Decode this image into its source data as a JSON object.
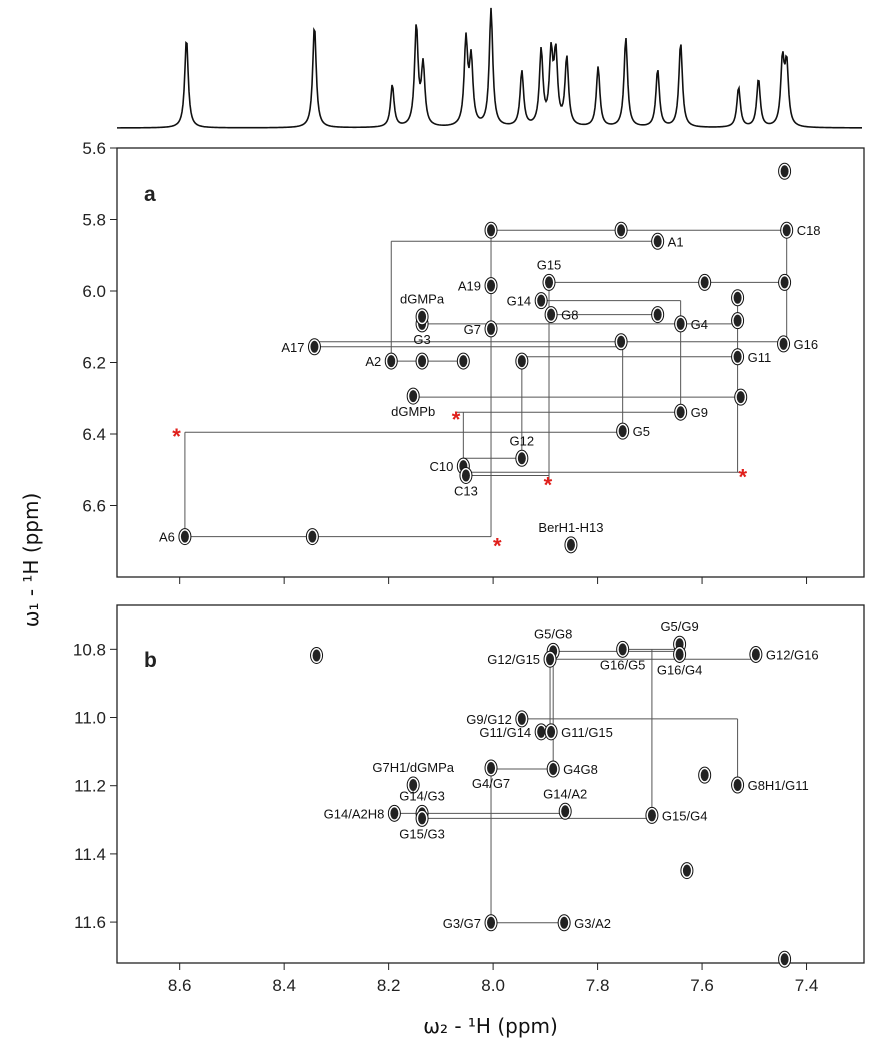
{
  "ylabel": "ω₁ - ¹H  (ppm)",
  "chart_data": [
    {
      "type": "spectrum",
      "xlim": [
        8.72,
        7.29
      ],
      "linewidth": 0.004,
      "x": [
        8.587,
        8.342,
        8.193,
        8.147,
        8.134,
        8.052,
        8.042,
        8.004,
        7.945,
        7.908,
        7.889,
        7.88,
        7.859,
        7.799,
        7.746,
        7.685,
        7.641,
        7.53,
        7.492,
        7.446,
        7.438
      ],
      "values": [
        76,
        87,
        36,
        85,
        51,
        72,
        55,
        100,
        47,
        64,
        59,
        59,
        58,
        51,
        76,
        49,
        72,
        34,
        41,
        55,
        51
      ]
    },
    {
      "type": "contour",
      "panel_label": "a",
      "xlim": [
        8.72,
        7.29
      ],
      "ylim": [
        5.6,
        6.8
      ],
      "yticks": [
        5.6,
        5.8,
        {
          "value": 6,
          "label": "6.0"
        },
        6.2,
        6.4,
        6.6
      ],
      "peaks": [
        {
          "label": "A1",
          "x": 7.685,
          "y": 5.861,
          "label_side": "right"
        },
        {
          "label": "C18",
          "x": 7.438,
          "y": 5.83,
          "label_side": "right"
        },
        {
          "x": 7.442,
          "y": 5.665
        },
        {
          "label": "A19",
          "x": 8.004,
          "y": 5.985,
          "label_side": "left"
        },
        {
          "label": "G15",
          "x": 7.893,
          "y": 5.976,
          "label_side": "above"
        },
        {
          "label": "G14",
          "x": 7.908,
          "y": 6.027,
          "label_side": "left"
        },
        {
          "label": "G8",
          "x": 7.889,
          "y": 6.066,
          "label_side": "right"
        },
        {
          "label": "G16",
          "x": 7.444,
          "y": 6.148,
          "label_side": "right"
        },
        {
          "label": "G3",
          "x": 8.136,
          "y": 6.092,
          "label_side": "below"
        },
        {
          "label": "dGMPa",
          "x": 8.136,
          "y": 6.072,
          "label_side": "above"
        },
        {
          "label": "G7",
          "x": 8.004,
          "y": 6.106,
          "label_side": "left"
        },
        {
          "label": "G4",
          "x": 7.641,
          "y": 6.092,
          "label_side": "right"
        },
        {
          "label": "G11",
          "x": 7.532,
          "y": 6.184,
          "label_side": "right"
        },
        {
          "label": "A17",
          "x": 8.342,
          "y": 6.156,
          "label_side": "left"
        },
        {
          "label": "A2",
          "x": 8.195,
          "y": 6.196,
          "label_side": "left"
        },
        {
          "label": "G9",
          "x": 7.641,
          "y": 6.339,
          "label_side": "right"
        },
        {
          "label": "dGMPb",
          "x": 8.153,
          "y": 6.294,
          "label_side": "below"
        },
        {
          "label": "G5",
          "x": 7.752,
          "y": 6.392,
          "label_side": "right"
        },
        {
          "label": "G12",
          "x": 7.945,
          "y": 6.468,
          "label_side": "above"
        },
        {
          "label": "C10",
          "x": 8.057,
          "y": 6.49,
          "label_side": "left"
        },
        {
          "label": "C13",
          "x": 8.052,
          "y": 6.516,
          "label_side": "below"
        },
        {
          "label": "A6",
          "x": 8.59,
          "y": 6.687,
          "label_side": "left"
        },
        {
          "label": "BerH1-H13",
          "x": 7.851,
          "y": 6.71,
          "label_side": "above"
        },
        {
          "x": 7.532,
          "y": 6.019
        },
        {
          "x": 7.755,
          "y": 6.142
        },
        {
          "x": 7.526,
          "y": 6.297
        },
        {
          "x": 7.945,
          "y": 6.196
        },
        {
          "x": 8.004,
          "y": 5.83
        },
        {
          "x": 7.755,
          "y": 5.83
        },
        {
          "x": 7.532,
          "y": 6.083
        },
        {
          "x": 8.136,
          "y": 6.196
        },
        {
          "x": 8.057,
          "y": 6.196
        },
        {
          "x": 8.346,
          "y": 6.687
        },
        {
          "x": 7.595,
          "y": 5.976
        },
        {
          "x": 7.685,
          "y": 6.066
        },
        {
          "x": 7.442,
          "y": 5.976
        }
      ],
      "lines": [
        [
          [
            8.004,
            5.83
          ],
          [
            7.438,
            5.83
          ]
        ],
        [
          [
            8.195,
            5.861
          ],
          [
            7.685,
            5.861
          ]
        ],
        [
          [
            8.195,
            5.861
          ],
          [
            8.195,
            6.196
          ]
        ],
        [
          [
            8.004,
            5.83
          ],
          [
            8.004,
            6.687
          ]
        ],
        [
          [
            7.438,
            5.83
          ],
          [
            7.438,
            6.148
          ]
        ],
        [
          [
            7.893,
            5.976
          ],
          [
            7.442,
            5.976
          ]
        ],
        [
          [
            7.532,
            6.019
          ],
          [
            7.532,
            6.507
          ]
        ],
        [
          [
            7.908,
            6.027
          ],
          [
            7.641,
            6.027
          ]
        ],
        [
          [
            7.889,
            6.066
          ],
          [
            7.685,
            6.066
          ]
        ],
        [
          [
            8.136,
            6.092
          ],
          [
            7.532,
            6.092
          ]
        ],
        [
          [
            8.342,
            6.142
          ],
          [
            7.444,
            6.142
          ]
        ],
        [
          [
            8.342,
            6.156
          ],
          [
            7.755,
            6.156
          ]
        ],
        [
          [
            7.945,
            6.184
          ],
          [
            7.532,
            6.184
          ]
        ],
        [
          [
            8.195,
            6.196
          ],
          [
            8.057,
            6.196
          ]
        ],
        [
          [
            8.153,
            6.297
          ],
          [
            7.526,
            6.297
          ]
        ],
        [
          [
            8.071,
            6.339
          ],
          [
            7.641,
            6.339
          ]
        ],
        [
          [
            8.057,
            6.339
          ],
          [
            8.057,
            6.516
          ]
        ],
        [
          [
            8.59,
            6.395
          ],
          [
            7.752,
            6.395
          ]
        ],
        [
          [
            8.59,
            6.395
          ],
          [
            8.59,
            6.687
          ]
        ],
        [
          [
            7.752,
            6.142
          ],
          [
            7.752,
            6.395
          ]
        ],
        [
          [
            7.641,
            6.027
          ],
          [
            7.641,
            6.339
          ]
        ],
        [
          [
            7.945,
            6.184
          ],
          [
            7.945,
            6.468
          ]
        ],
        [
          [
            7.893,
            5.976
          ],
          [
            7.893,
            6.53
          ]
        ],
        [
          [
            8.057,
            6.468
          ],
          [
            7.945,
            6.468
          ]
        ],
        [
          [
            8.057,
            6.507
          ],
          [
            7.522,
            6.507
          ]
        ],
        [
          [
            8.052,
            6.516
          ],
          [
            7.893,
            6.516
          ]
        ],
        [
          [
            8.59,
            6.687
          ],
          [
            8.004,
            6.687
          ]
        ]
      ],
      "asterisks": [
        {
          "label": "*",
          "x": 8.606,
          "y": 6.395
        },
        {
          "label": "*",
          "x": 8.071,
          "y": 6.347
        },
        {
          "label": "*",
          "x": 7.895,
          "y": 6.53
        },
        {
          "label": "*",
          "x": 7.522,
          "y": 6.507
        },
        {
          "label": "*",
          "x": 7.992,
          "y": 6.701
        }
      ]
    },
    {
      "type": "contour",
      "panel_label": "b",
      "xlim": [
        8.72,
        7.29
      ],
      "ylim": [
        10.67,
        11.72
      ],
      "xlabel": "ω₂ - ¹H  (ppm)",
      "xticks": [
        8.6,
        8.4,
        8.2,
        {
          "value": 8,
          "label": "8.0"
        },
        7.8,
        7.6,
        7.4
      ],
      "yticks": [
        10.8,
        {
          "value": 11,
          "label": "11.0"
        },
        11.2,
        11.4,
        11.6
      ],
      "peaks": [
        {
          "label": "G5/G8",
          "x": 7.885,
          "y": 10.806,
          "label_side": "above"
        },
        {
          "label": "G12/G15",
          "x": 7.891,
          "y": 10.829,
          "label_side": "left"
        },
        {
          "label": "G16/G5",
          "x": 7.752,
          "y": 10.8,
          "label_side": "below"
        },
        {
          "label": "G5/G9",
          "x": 7.643,
          "y": 10.785,
          "label_side": "above"
        },
        {
          "label": "G16/G4",
          "x": 7.643,
          "y": 10.815,
          "label_side": "below"
        },
        {
          "label": "G12/G16",
          "x": 7.497,
          "y": 10.815,
          "label_side": "right"
        },
        {
          "label": "G9/G12",
          "x": 7.945,
          "y": 11.004,
          "label_side": "left"
        },
        {
          "label": "G11/G14",
          "x": 7.908,
          "y": 11.042,
          "label_side": "left"
        },
        {
          "label": "G11/G15",
          "x": 7.889,
          "y": 11.042,
          "label_side": "right"
        },
        {
          "label": "G4G8",
          "x": 7.885,
          "y": 11.151,
          "label_side": "right"
        },
        {
          "label": "G4/G7",
          "x": 8.004,
          "y": 11.148,
          "label_side": "below"
        },
        {
          "label": "G7H1/dGMPa",
          "x": 8.153,
          "y": 11.198,
          "label_side": "above"
        },
        {
          "label": "G8H1/G11",
          "x": 7.532,
          "y": 11.198,
          "label_side": "right"
        },
        {
          "label": "G14/A2H8",
          "x": 8.189,
          "y": 11.281,
          "label_side": "left"
        },
        {
          "label": "G14/G3",
          "x": 8.136,
          "y": 11.281,
          "label_side": "above"
        },
        {
          "label": "G15/G3",
          "x": 8.136,
          "y": 11.296,
          "label_side": "below"
        },
        {
          "label": "G14/A2",
          "x": 7.862,
          "y": 11.275,
          "label_side": "above"
        },
        {
          "label": "G15/G4",
          "x": 7.696,
          "y": 11.287,
          "label_side": "right"
        },
        {
          "label": "G3/G7",
          "x": 8.004,
          "y": 11.602,
          "label_side": "left"
        },
        {
          "label": "G3/A2",
          "x": 7.864,
          "y": 11.602,
          "label_side": "right"
        },
        {
          "x": 8.338,
          "y": 10.818
        },
        {
          "x": 7.595,
          "y": 11.169
        },
        {
          "x": 7.629,
          "y": 11.449
        },
        {
          "x": 7.442,
          "y": 11.709
        }
      ],
      "lines": [
        [
          [
            7.885,
            10.806
          ],
          [
            7.643,
            10.806
          ]
        ],
        [
          [
            7.891,
            10.829
          ],
          [
            7.497,
            10.829
          ]
        ],
        [
          [
            7.885,
            10.806
          ],
          [
            7.885,
            11.151
          ]
        ],
        [
          [
            7.891,
            10.829
          ],
          [
            7.891,
            11.042
          ]
        ],
        [
          [
            7.752,
            10.8
          ],
          [
            7.643,
            10.8
          ]
        ],
        [
          [
            7.696,
            10.8
          ],
          [
            7.696,
            11.287
          ]
        ],
        [
          [
            7.945,
            11.004
          ],
          [
            7.532,
            11.004
          ]
        ],
        [
          [
            7.532,
            11.004
          ],
          [
            7.532,
            11.198
          ]
        ],
        [
          [
            8.004,
            11.151
          ],
          [
            7.885,
            11.151
          ]
        ],
        [
          [
            8.004,
            11.151
          ],
          [
            8.004,
            11.602
          ]
        ],
        [
          [
            8.189,
            11.281
          ],
          [
            7.862,
            11.281
          ]
        ],
        [
          [
            8.136,
            11.296
          ],
          [
            7.696,
            11.296
          ]
        ],
        [
          [
            8.004,
            11.602
          ],
          [
            7.864,
            11.602
          ]
        ],
        [
          [
            7.908,
            11.042
          ],
          [
            7.889,
            11.042
          ]
        ]
      ]
    }
  ]
}
